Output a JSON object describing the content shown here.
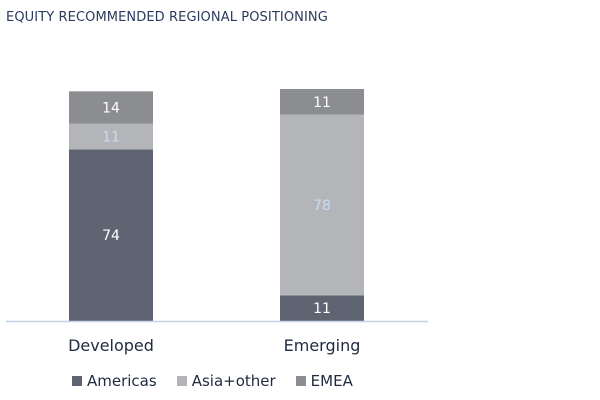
{
  "chart_data": {
    "type": "bar",
    "stacked": true,
    "title": "EQUITY RECOMMENDED REGIONAL POSITIONING",
    "categories": [
      "Developed",
      "Emerging"
    ],
    "series": [
      {
        "name": "Americas",
        "values": [
          74,
          11
        ],
        "color": "#5f6473",
        "label_color": "#ffffff"
      },
      {
        "name": "Asia+other",
        "values": [
          11,
          78
        ],
        "color": "#b4b5b8",
        "label_color": "#c9dcf2"
      },
      {
        "name": "EMEA",
        "values": [
          14,
          11
        ],
        "color": "#8c8d91",
        "label_color": "#ffffff"
      }
    ],
    "ylim": [
      0,
      100
    ],
    "grid": false,
    "legend_position": "bottom",
    "axis_color": "#c5d3e8"
  }
}
